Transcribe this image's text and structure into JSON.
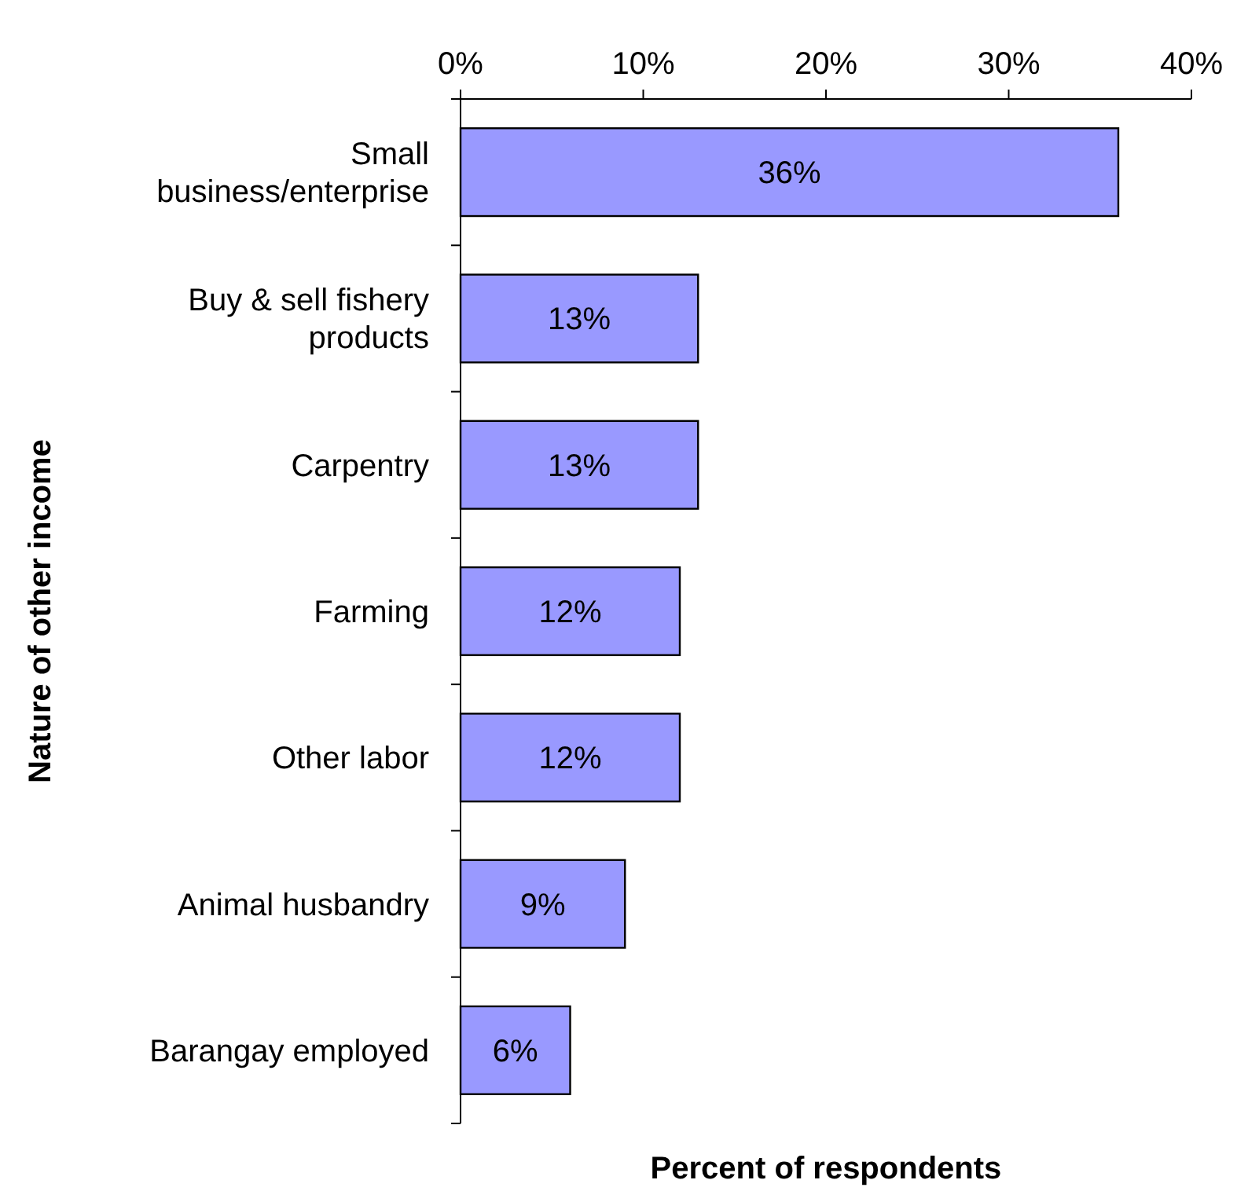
{
  "chart_data": {
    "type": "bar",
    "orientation": "horizontal",
    "xlabel": "Percent of respondents",
    "ylabel": "Nature of other income",
    "categories": [
      "Small business/enterprise",
      "Buy & sell fishery products",
      "Carpentry",
      "Farming",
      "Other labor",
      "Animal husbandry",
      "Barangay employed"
    ],
    "values": [
      36,
      13,
      13,
      12,
      12,
      9,
      6
    ],
    "value_labels": [
      "36%",
      "13%",
      "13%",
      "12%",
      "12%",
      "9%",
      "6%"
    ],
    "color": "#9999ff",
    "xlim": [
      0,
      40
    ],
    "xticks": [
      {
        "value": 0,
        "label": "0%"
      },
      {
        "value": 10,
        "label": "10%"
      },
      {
        "value": 20,
        "label": "20%"
      },
      {
        "value": 30,
        "label": "30%"
      },
      {
        "value": 40,
        "label": "40%"
      }
    ],
    "grid": false
  }
}
